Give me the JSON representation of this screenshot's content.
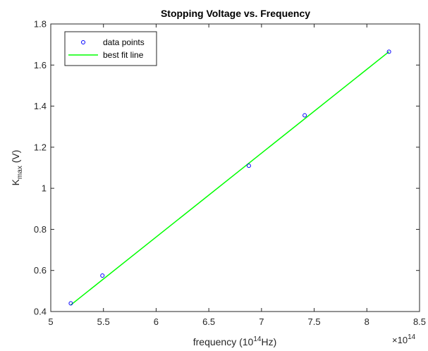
{
  "chart_data": {
    "type": "scatter",
    "title": "Stopping Voltage vs. Frequency",
    "xlabel": {
      "prefix": "frequency (10",
      "sup": "14",
      "suffix": "Hz)"
    },
    "ylabel": {
      "main": "K",
      "sub": "max",
      "suffix": " (V)"
    },
    "x_exponent": {
      "prefix": "×10",
      "sup": "14"
    },
    "xlim": [
      5,
      8.5
    ],
    "ylim": [
      0.4,
      1.8
    ],
    "xticks": [
      "5",
      "5.5",
      "6",
      "6.5",
      "7",
      "7.5",
      "8",
      "8.5"
    ],
    "yticks": [
      "0.4",
      "0.6",
      "0.8",
      "1",
      "1.2",
      "1.4",
      "1.6",
      "1.8"
    ],
    "grid": false,
    "legend_position": "top-left",
    "series": [
      {
        "name": "data points",
        "kind": "scatter",
        "marker": "circle",
        "color": "#0000ff",
        "x": [
          5.19,
          5.49,
          6.88,
          7.41,
          8.21
        ],
        "y": [
          0.44,
          0.575,
          1.11,
          1.355,
          1.665
        ]
      },
      {
        "name": "best fit line",
        "kind": "line",
        "color": "#00ff00",
        "x": [
          5.19,
          8.21
        ],
        "y": [
          0.432,
          1.665
        ]
      }
    ]
  }
}
